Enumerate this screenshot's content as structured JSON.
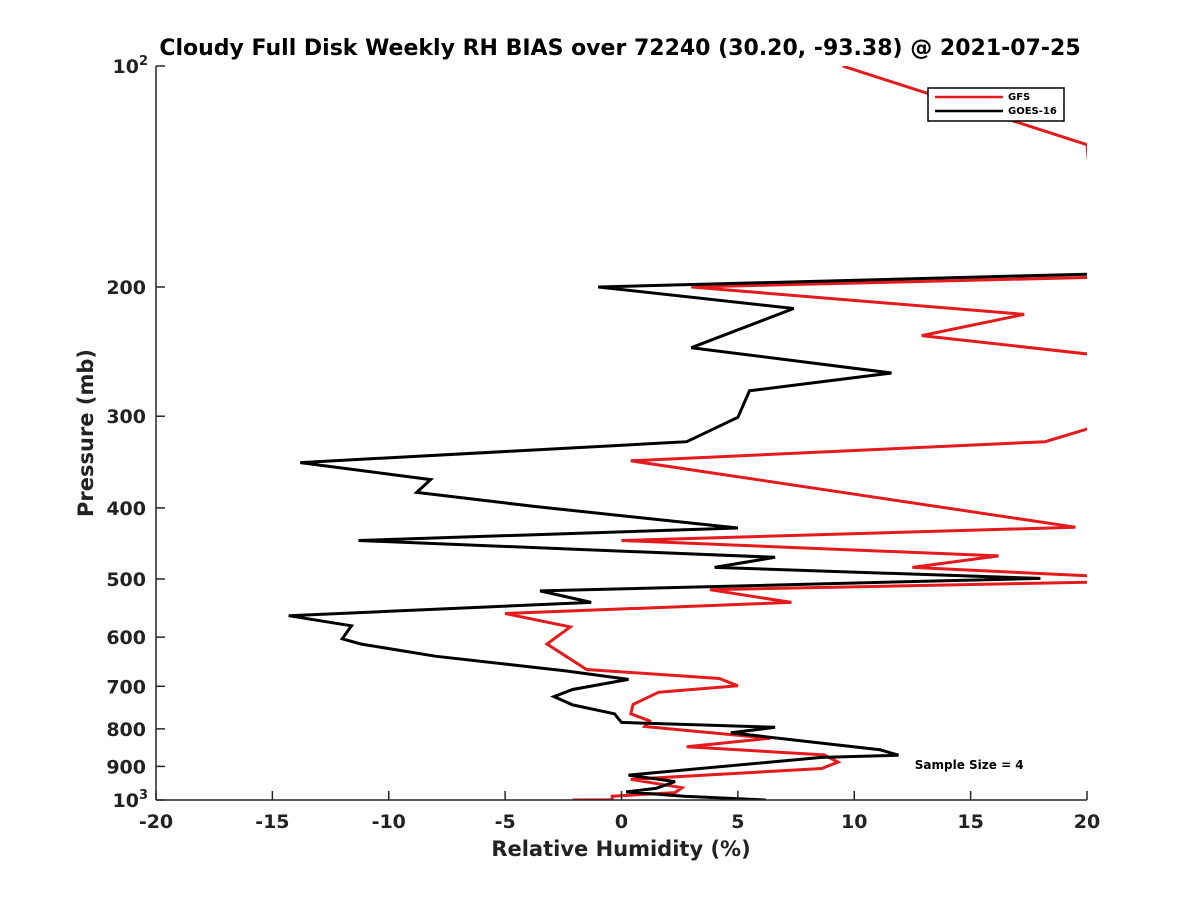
{
  "chart_data": {
    "type": "line",
    "title": "Cloudy Full Disk Weekly RH BIAS over 72240 (30.20, -93.38) @ 2021-07-25",
    "xlabel": "Relative Humidity (%)",
    "ylabel": "Pressure (mb)",
    "xlim": [
      -20,
      20
    ],
    "ylim": [
      100,
      1000
    ],
    "yscale": "log",
    "y_reversed": true,
    "grid": false,
    "legend_position": "top-right",
    "x_ticks": [
      {
        "value": -20,
        "label": "-20"
      },
      {
        "value": -15,
        "label": "-15"
      },
      {
        "value": -10,
        "label": "-10"
      },
      {
        "value": -5,
        "label": "-5"
      },
      {
        "value": 0,
        "label": "0"
      },
      {
        "value": 5,
        "label": "5"
      },
      {
        "value": 10,
        "label": "10"
      },
      {
        "value": 15,
        "label": "15"
      },
      {
        "value": 20,
        "label": "20"
      }
    ],
    "y_ticks": [
      {
        "value": 100,
        "base": "10",
        "exp": "2"
      },
      {
        "value": 200,
        "label": "200"
      },
      {
        "value": 300,
        "label": "300"
      },
      {
        "value": 400,
        "label": "400"
      },
      {
        "value": 500,
        "label": "500"
      },
      {
        "value": 600,
        "label": "600"
      },
      {
        "value": 700,
        "label": "700"
      },
      {
        "value": 800,
        "label": "800"
      },
      {
        "value": 900,
        "label": "900"
      },
      {
        "value": 1000,
        "base": "10",
        "exp": "3"
      }
    ],
    "series": [
      {
        "name": "GFS",
        "color": "#e41a1c",
        "points": [
          [
            9.5,
            100
          ],
          [
            20.0,
            128
          ],
          [
            20.5,
            194
          ],
          [
            3.0,
            200
          ],
          [
            17.3,
            218
          ],
          [
            12.9,
            233
          ],
          [
            20.1,
            247
          ],
          [
            20.2,
            311
          ],
          [
            18.2,
            325
          ],
          [
            0.4,
            345
          ],
          [
            19.5,
            425
          ],
          [
            0.0,
            443
          ],
          [
            16.2,
            465
          ],
          [
            12.5,
            482
          ],
          [
            20.1,
            495
          ],
          [
            20.1,
            505
          ],
          [
            3.8,
            517
          ],
          [
            7.3,
            538
          ],
          [
            -5.0,
            557
          ],
          [
            -2.2,
            581
          ],
          [
            -3.2,
            613
          ],
          [
            -1.5,
            664
          ],
          [
            4.2,
            683
          ],
          [
            5.0,
            699
          ],
          [
            1.6,
            713
          ],
          [
            0.5,
            741
          ],
          [
            0.4,
            763
          ],
          [
            1.2,
            780
          ],
          [
            1.0,
            794
          ],
          [
            6.4,
            824
          ],
          [
            2.8,
            846
          ],
          [
            8.7,
            868
          ],
          [
            9.3,
            888
          ],
          [
            8.6,
            906
          ],
          [
            0.4,
            937
          ],
          [
            2.6,
            962
          ],
          [
            2.3,
            977
          ],
          [
            -0.4,
            988
          ],
          [
            -0.4,
            999
          ],
          [
            -2.1,
            1000
          ]
        ]
      },
      {
        "name": "GOES-16",
        "color": "#000000",
        "points": [
          [
            20.5,
            192
          ],
          [
            -1.0,
            200
          ],
          [
            7.4,
            214
          ],
          [
            3.0,
            242
          ],
          [
            11.6,
            262
          ],
          [
            5.5,
            277
          ],
          [
            5.0,
            301
          ],
          [
            2.8,
            325
          ],
          [
            -13.8,
            347
          ],
          [
            -8.2,
            366
          ],
          [
            -8.8,
            381
          ],
          [
            -3.8,
            398
          ],
          [
            5.0,
            426
          ],
          [
            -11.3,
            443
          ],
          [
            6.6,
            467
          ],
          [
            4.0,
            482
          ],
          [
            18.0,
            499
          ],
          [
            -3.5,
            519
          ],
          [
            -1.3,
            538
          ],
          [
            -14.3,
            561
          ],
          [
            -11.6,
            579
          ],
          [
            -12.0,
            603
          ],
          [
            -11.2,
            613
          ],
          [
            -8.0,
            637
          ],
          [
            -2.4,
            667
          ],
          [
            0.3,
            685
          ],
          [
            -2.1,
            707
          ],
          [
            -2.9,
            723
          ],
          [
            -2.1,
            742
          ],
          [
            -0.3,
            763
          ],
          [
            0.0,
            784
          ],
          [
            6.6,
            796
          ],
          [
            4.7,
            810
          ],
          [
            11.1,
            854
          ],
          [
            11.9,
            869
          ],
          [
            8.6,
            875
          ],
          [
            0.3,
            925
          ],
          [
            2.3,
            944
          ],
          [
            1.5,
            964
          ],
          [
            0.2,
            975
          ],
          [
            2.7,
            988
          ],
          [
            6.2,
            1000
          ]
        ]
      }
    ],
    "annotations": [
      {
        "text": "Sample Size = 4",
        "x": 12.6,
        "y": 910
      }
    ]
  }
}
